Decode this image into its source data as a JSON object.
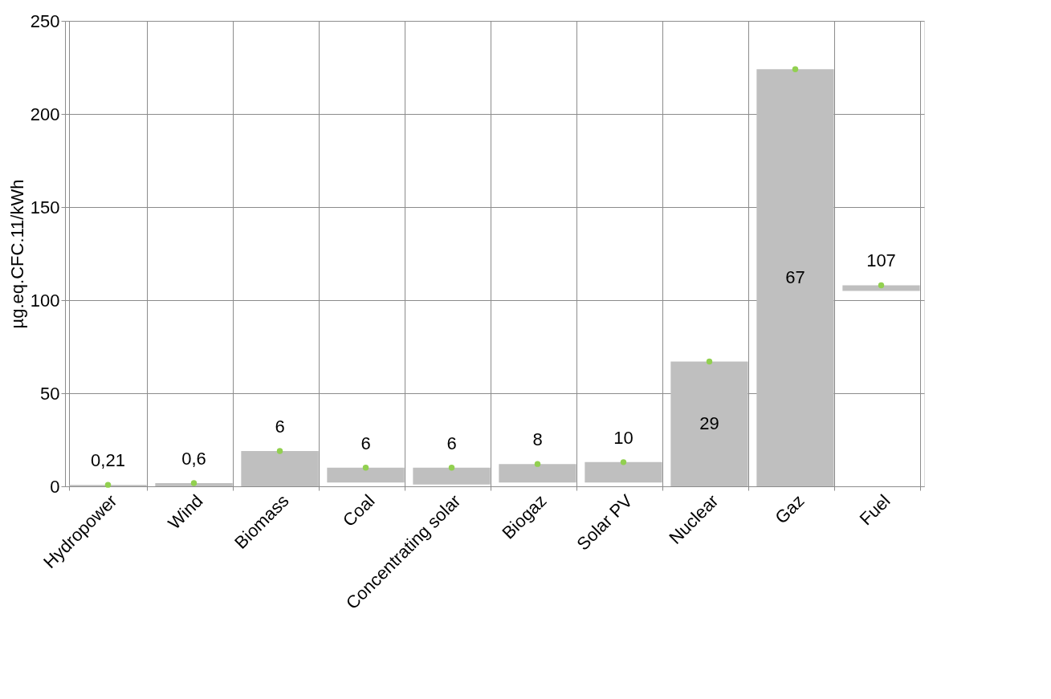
{
  "chart_data": {
    "type": "bar",
    "ylabel": "µg.eq.CFC.11/kWh",
    "categories": [
      "Hydropower",
      "Wind",
      "Biomass",
      "Coal",
      "Concentrating solar",
      "Biogaz",
      "Solar PV",
      "Nuclear",
      "Gaz",
      "Fuel"
    ],
    "series": [
      {
        "color": "#bfbfbf",
        "base": [
          0,
          0,
          0,
          2,
          1,
          2,
          2,
          0,
          0,
          105
        ],
        "values": [
          0.8,
          1.7,
          19,
          8,
          9,
          10,
          11,
          67,
          224,
          3
        ]
      },
      {
        "type": "scatter",
        "color": "#92d050",
        "marker": "circle",
        "values": [
          0.8,
          1.7,
          19,
          10,
          10,
          12,
          13,
          67,
          224,
          108
        ]
      }
    ],
    "ylim": [
      0,
      250
    ],
    "yticks": [
      0,
      50,
      100,
      150,
      200,
      250
    ],
    "annotations": [
      "0,21",
      "0,6",
      "6",
      "6",
      "6",
      "8",
      "10",
      "29",
      "67",
      "107"
    ],
    "grid": true
  }
}
